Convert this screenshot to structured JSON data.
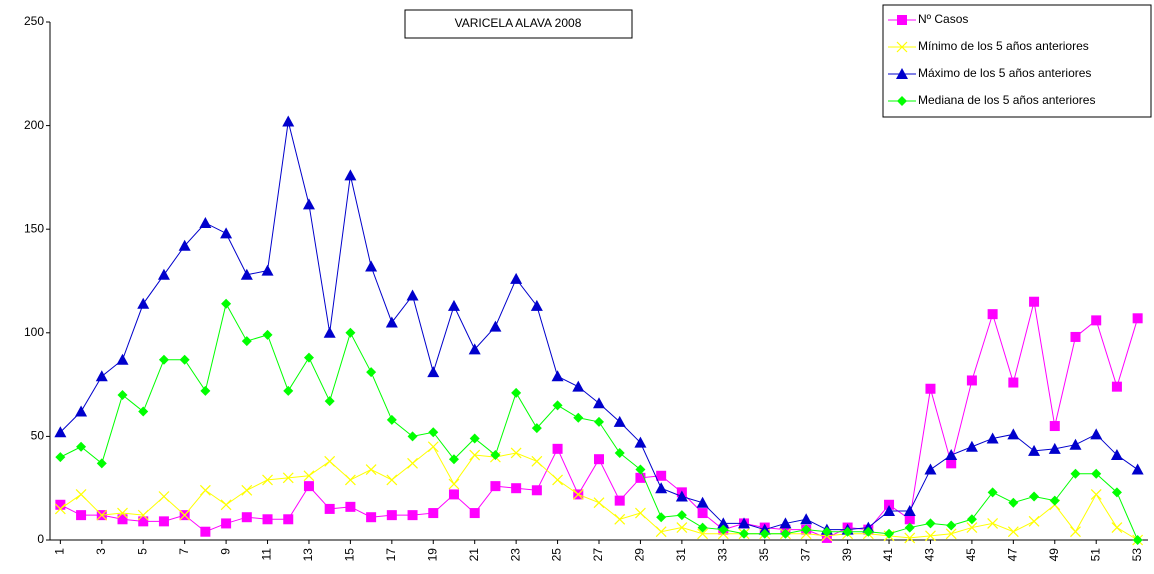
{
  "chart_data": {
    "type": "line",
    "title": "VARICELA ALAVA 2008",
    "x": [
      1,
      2,
      3,
      4,
      5,
      6,
      7,
      8,
      9,
      10,
      11,
      12,
      13,
      14,
      15,
      16,
      17,
      18,
      19,
      20,
      21,
      22,
      23,
      24,
      25,
      26,
      27,
      28,
      29,
      30,
      31,
      32,
      33,
      34,
      35,
      36,
      37,
      38,
      39,
      40,
      41,
      42,
      43,
      44,
      45,
      46,
      47,
      48,
      49,
      50,
      51,
      52,
      53
    ],
    "xlim": [
      0.5,
      53.5
    ],
    "xticks": [
      1,
      3,
      5,
      7,
      9,
      11,
      13,
      15,
      17,
      19,
      21,
      23,
      25,
      27,
      29,
      31,
      33,
      35,
      37,
      39,
      41,
      43,
      45,
      47,
      49,
      51,
      53
    ],
    "ylim": [
      0,
      250
    ],
    "yticks": [
      0,
      50,
      100,
      150,
      200,
      250
    ],
    "grid": false,
    "legend": "top-right",
    "series": [
      {
        "name": "Nº Casos",
        "color": "#ff00ff",
        "marker": "square",
        "values": [
          17,
          12,
          12,
          10,
          9,
          9,
          12,
          4,
          8,
          11,
          10,
          10,
          26,
          15,
          16,
          11,
          12,
          12,
          13,
          22,
          13,
          26,
          25,
          24,
          44,
          22,
          39,
          19,
          30,
          31,
          23,
          13,
          5,
          8,
          6,
          5,
          5,
          1,
          6,
          5,
          17,
          10,
          73,
          37,
          77,
          109,
          76,
          115,
          55,
          98,
          106,
          74,
          107
        ]
      },
      {
        "name": "Mínimo de los 5 años anteriores",
        "color": "#ffff00",
        "marker": "x",
        "values": [
          15,
          22,
          12,
          13,
          12,
          21,
          12,
          24,
          17,
          24,
          29,
          30,
          31,
          38,
          29,
          34,
          29,
          37,
          45,
          27,
          41,
          40,
          42,
          38,
          29,
          22,
          18,
          10,
          13,
          4,
          6,
          3,
          3,
          3,
          3,
          3,
          3,
          2,
          3,
          3,
          2,
          1,
          2,
          3,
          6,
          8,
          4,
          9,
          17,
          4,
          22,
          6,
          0
        ]
      },
      {
        "name": "Máximo de los 5 años anteriores",
        "color": "#0000cc",
        "marker": "triangle",
        "values": [
          52,
          62,
          79,
          87,
          114,
          128,
          142,
          153,
          148,
          128,
          130,
          202,
          162,
          100,
          176,
          132,
          105,
          118,
          81,
          113,
          92,
          103,
          126,
          113,
          79,
          74,
          66,
          57,
          47,
          25,
          21,
          18,
          8,
          8,
          5,
          8,
          10,
          5,
          5,
          6,
          14,
          14,
          34,
          41,
          45,
          49,
          51,
          43,
          44,
          46,
          51,
          41,
          34
        ]
      },
      {
        "name": "Mediana de los 5 años anteriores",
        "color": "#00ff00",
        "marker": "diamond",
        "values": [
          40,
          45,
          37,
          70,
          62,
          87,
          87,
          72,
          114,
          96,
          99,
          72,
          88,
          67,
          100,
          81,
          58,
          50,
          52,
          39,
          49,
          41,
          71,
          54,
          65,
          59,
          57,
          42,
          34,
          11,
          12,
          6,
          5,
          3,
          3,
          3,
          5,
          4,
          4,
          4,
          3,
          6,
          8,
          7,
          10,
          23,
          18,
          21,
          19,
          32,
          32,
          23,
          0
        ]
      }
    ]
  }
}
